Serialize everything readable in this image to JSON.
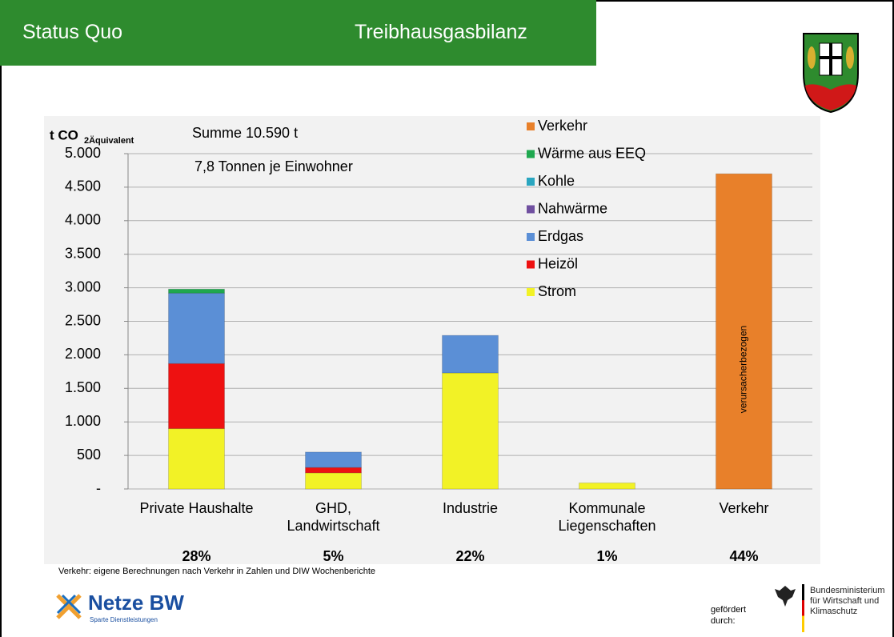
{
  "header": {
    "left": "Status Quo",
    "right": "Treibhausgasbilanz"
  },
  "chart_data": {
    "type": "bar",
    "stacked": true,
    "y_label": "t CO",
    "y_label_sub": "2Äquivalent",
    "annotations": {
      "sum": "Summe 10.590 t",
      "per_capita": "7,8 Tonnen je Einwohner",
      "bar_note": "verursacherbezogen",
      "source": "Verkehr: eigene Berechnungen nach Verkehr in Zahlen und DIW Wochenberichte"
    },
    "categories": [
      "Private Haushalte",
      "GHD, Landwirtschaft",
      "Industrie",
      "Kommunale Liegenschaften",
      "Verkehr"
    ],
    "shares": [
      "28%",
      "5%",
      "22%",
      "1%",
      "44%"
    ],
    "series": [
      {
        "name": "Strom",
        "color": "#f2f226",
        "values": [
          900,
          240,
          1730,
          90,
          null
        ]
      },
      {
        "name": "Heizöl",
        "color": "#ee1111",
        "values": [
          970,
          80,
          null,
          null,
          null
        ]
      },
      {
        "name": "Erdgas",
        "color": "#5b8fd6",
        "values": [
          1050,
          230,
          560,
          null,
          null
        ]
      },
      {
        "name": "Nahwärme",
        "color": "#7050a0",
        "values": [
          null,
          null,
          null,
          null,
          null
        ]
      },
      {
        "name": "Kohle",
        "color": "#2aa6c0",
        "values": [
          null,
          null,
          null,
          null,
          null
        ]
      },
      {
        "name": "Wärme aus EEQ",
        "color": "#1fa84f",
        "values": [
          60,
          null,
          null,
          null,
          null
        ]
      },
      {
        "name": "Verkehr",
        "color": "#e8802a",
        "values": [
          null,
          null,
          null,
          null,
          4700
        ]
      }
    ],
    "ylim": [
      0,
      5000
    ],
    "yticks": [
      {
        "value": 0,
        "label": "-"
      },
      500,
      {
        "value": 1000,
        "label": "1.000"
      },
      {
        "value": 1500,
        "label": "1.500"
      },
      {
        "value": 2000,
        "label": "2.000"
      },
      {
        "value": 2500,
        "label": "2.500"
      },
      {
        "value": 3000,
        "label": "3.000"
      },
      {
        "value": 3500,
        "label": "3.500"
      },
      {
        "value": 4000,
        "label": "4.000"
      },
      {
        "value": 4500,
        "label": "4.500"
      },
      {
        "value": 5000,
        "label": "5.000"
      }
    ],
    "grid": true,
    "legend": "top-right"
  },
  "footer": {
    "logo": "Netze BW",
    "logo_sub": "Sparte Dienstleistungen",
    "funded": "gefördert durch:",
    "ministry": "Bundesministerium für Wirtschaft und Klimaschutz"
  }
}
